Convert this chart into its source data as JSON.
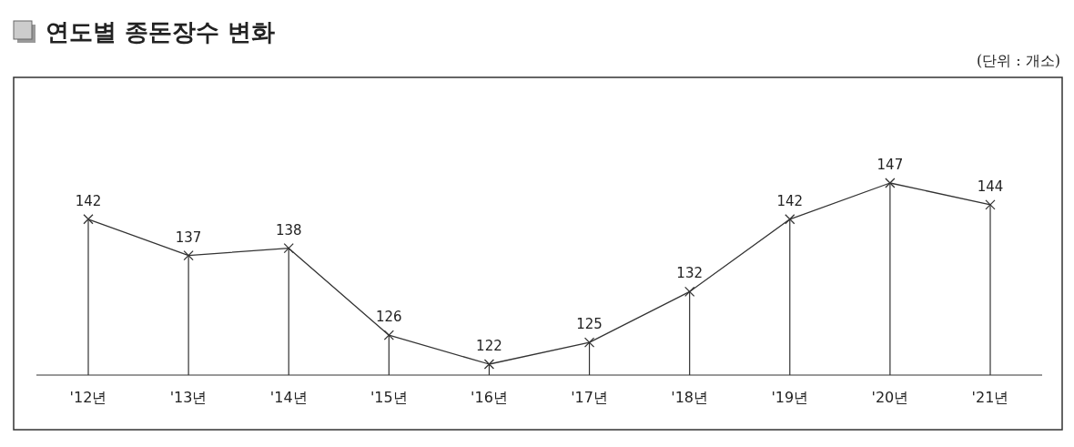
{
  "chart_data": {
    "type": "line",
    "title": "연도별 종돈장수 변화",
    "annotations": [
      "(단위 : 개소)"
    ],
    "categories": [
      "'12년",
      "'13년",
      "'14년",
      "'15년",
      "'16년",
      "'17년",
      "'18년",
      "'19년",
      "'20년",
      "'21년"
    ],
    "series": [
      {
        "color": "#333333",
        "values": [
          142,
          137,
          138,
          126,
          122,
          125,
          132,
          142,
          147,
          144
        ]
      }
    ],
    "data_labels": true,
    "marker": "cross",
    "grid": "x"
  }
}
